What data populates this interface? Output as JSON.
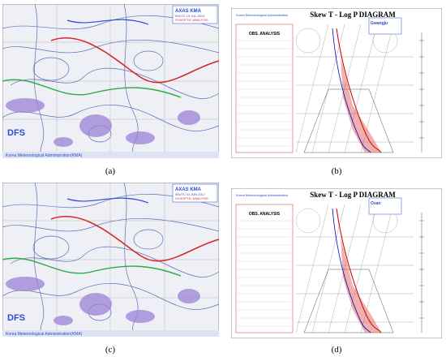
{
  "panels": [
    {
      "label": "(a)",
      "map": {
        "agency": "AXAS KMA",
        "time": "00UTC 15 JUL 2014",
        "product": "SYNOPTIC ANALYSIS",
        "logo": "DFS",
        "footer": "Korea Meteorological Administration(KMA)"
      }
    },
    {
      "label": "(b)",
      "diagram": {
        "title": "Skew T - Log P DIAGRAM",
        "agency": "Korea Meteorological Administration",
        "station": "Gwangju",
        "section": "OBS. ANALYSIS"
      }
    },
    {
      "label": "(c)",
      "map": {
        "agency": "AXAS KMA",
        "time": "00UTC 01 JUN 2017",
        "product": "SYNOPTIC ANALYSIS",
        "logo": "DFS",
        "footer": "Korea Meteorological Administration(KMA)"
      }
    },
    {
      "label": "(d)",
      "diagram": {
        "title": "Skew T - Log P DIAGRAM",
        "agency": "Korea Meteorological Administration",
        "station": "Osan",
        "section": "OBS. ANALYSIS"
      }
    }
  ]
}
